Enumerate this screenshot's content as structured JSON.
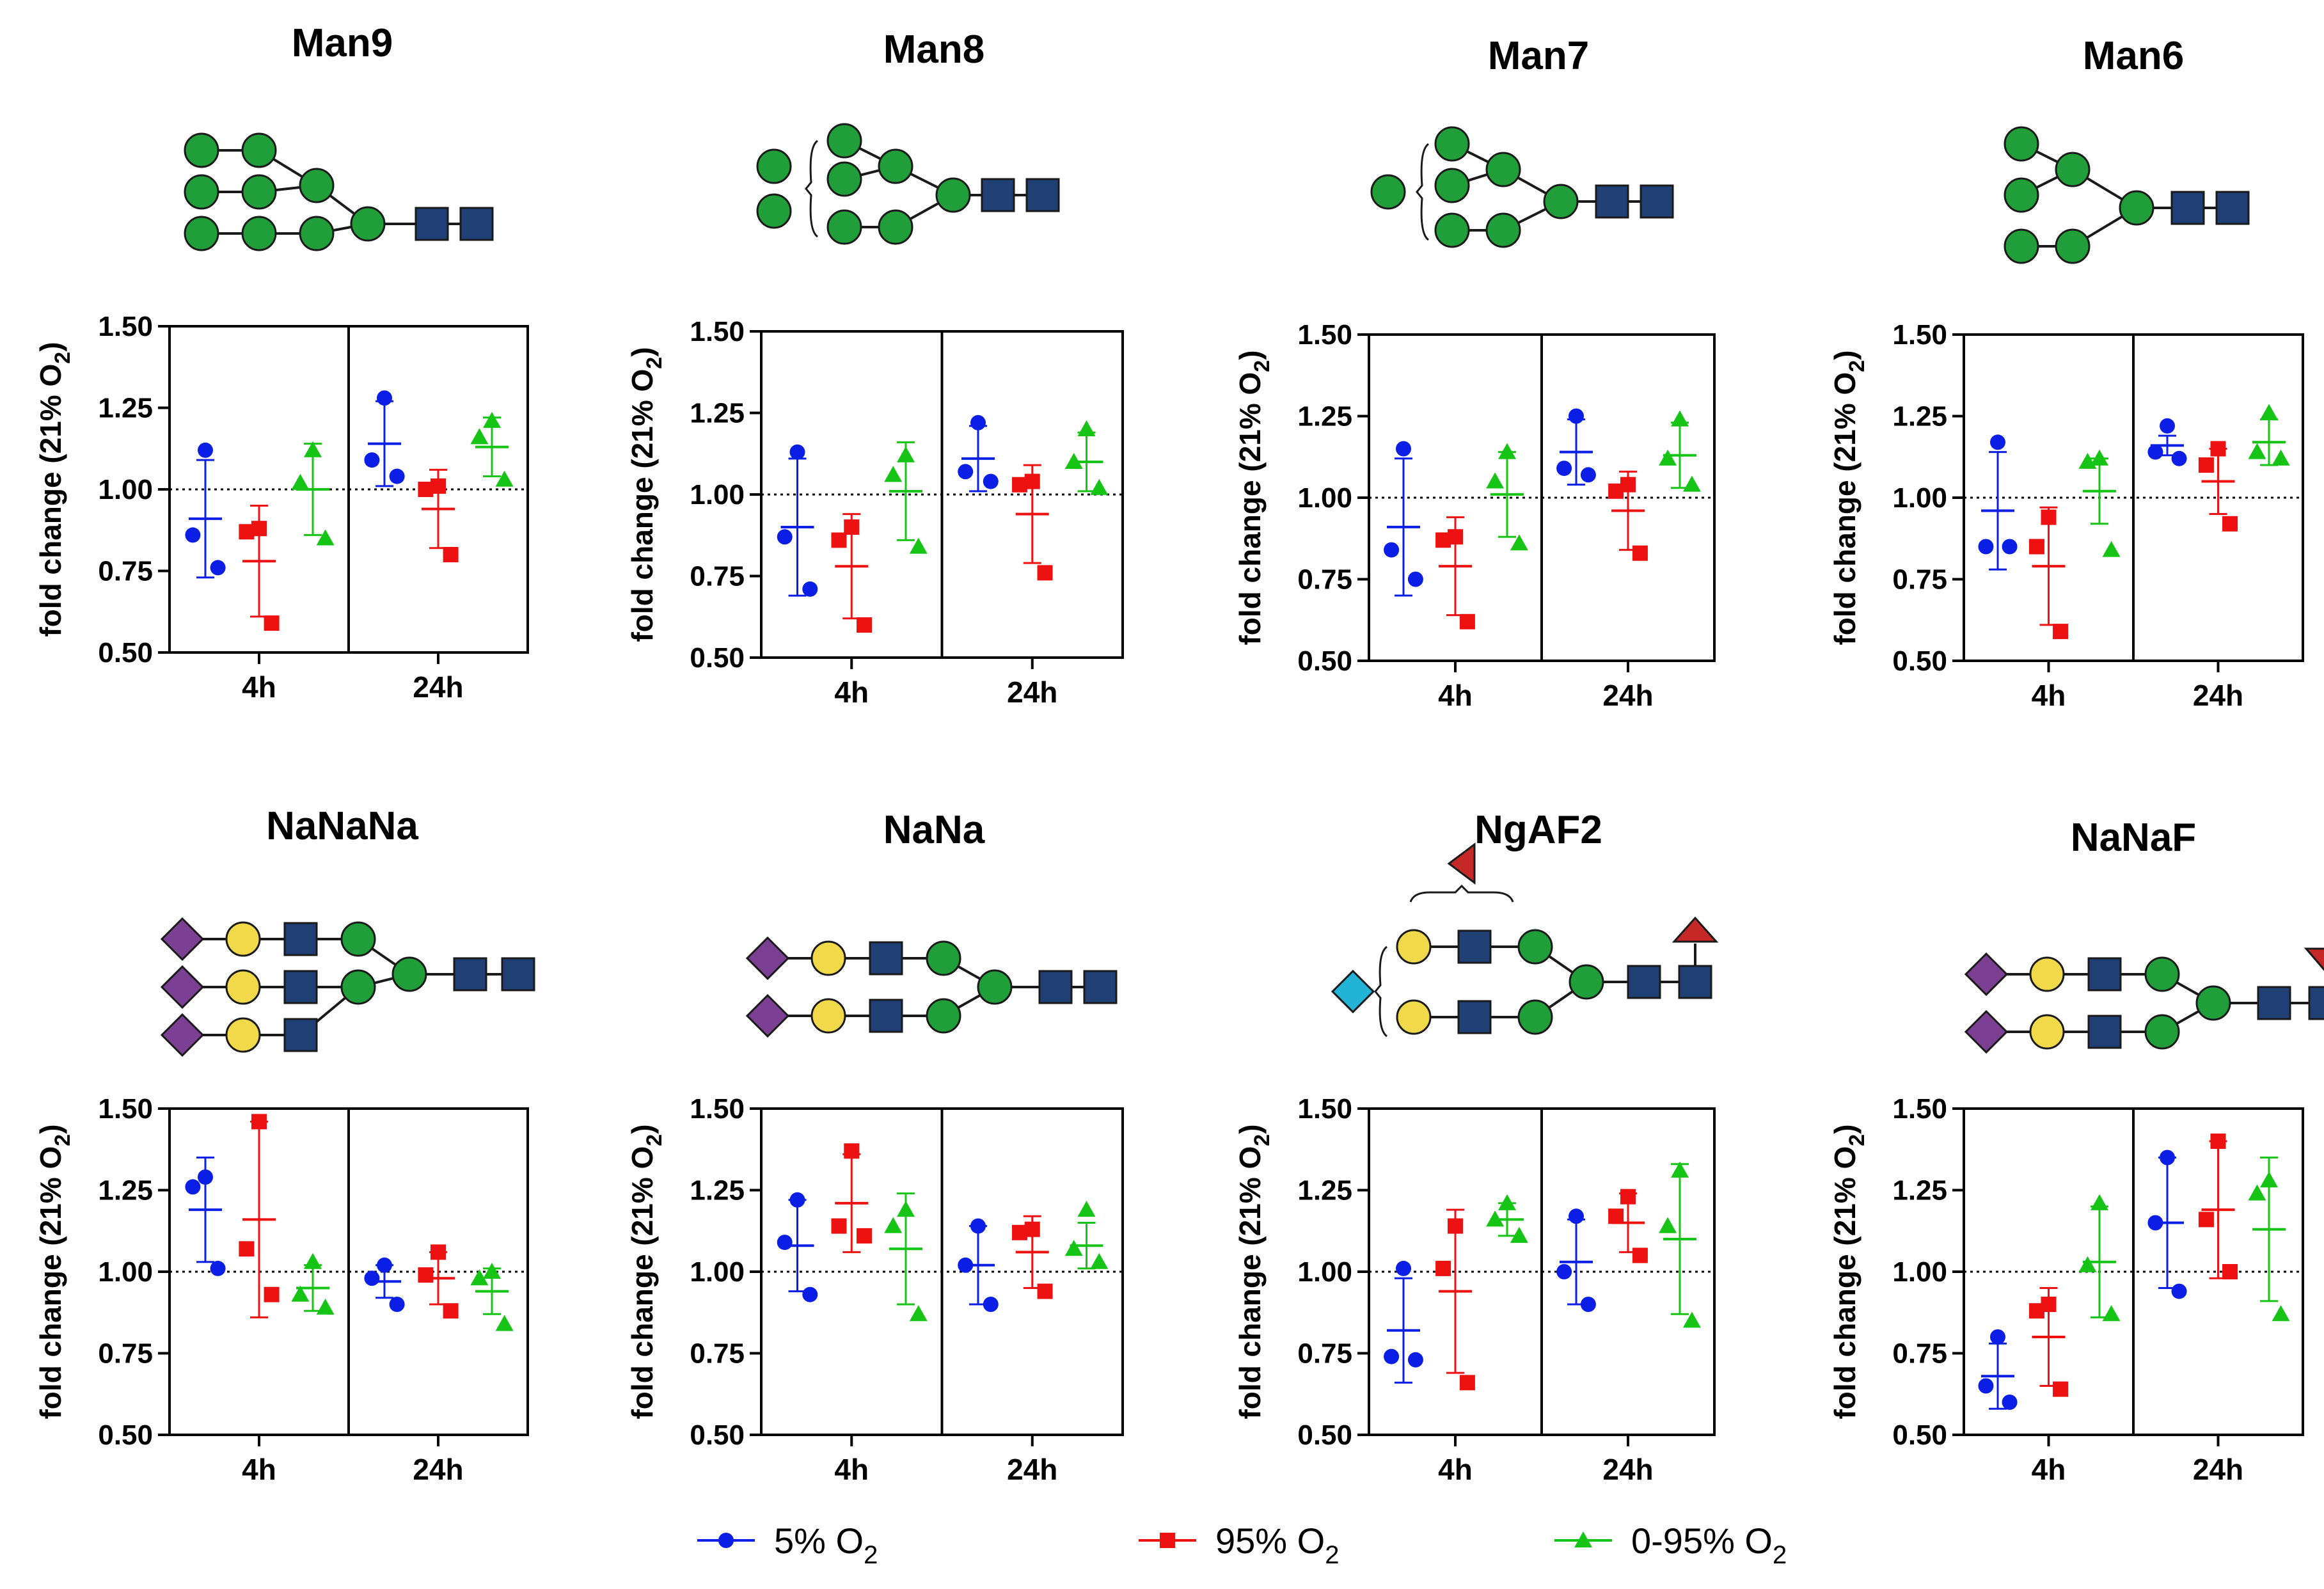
{
  "colors": {
    "s5": "#0a1ee6",
    "s95": "#ee1111",
    "s095": "#16c416"
  },
  "legend": [
    {
      "series": "s5",
      "label": "5% O",
      "sub": "2",
      "marker": "circle"
    },
    {
      "series": "s95",
      "label": "95% O",
      "sub": "2",
      "marker": "square"
    },
    {
      "series": "s095",
      "label": "0-95% O",
      "sub": "2",
      "marker": "triangle"
    }
  ],
  "chart_data": [
    {
      "type": "scatter",
      "title": "Man9",
      "glycan": "man9-icon",
      "ylabel": "fold change (21% O",
      "ylabel_sub": "2",
      "ylabel_end": ")",
      "ylim": [
        0.5,
        1.5
      ],
      "yticks": [
        "0.50",
        "0.75",
        "1.00",
        "1.25",
        "1.50"
      ],
      "categories": [
        "4h",
        "24h"
      ],
      "reference": 1.0,
      "series": [
        {
          "name": "5% O2",
          "key": "s5",
          "groups": [
            {
              "points": [
                1.12,
                0.86,
                0.76
              ],
              "mean": 0.91,
              "sd": 0.18
            },
            {
              "points": [
                1.28,
                1.09,
                1.04
              ],
              "mean": 1.14,
              "sd": 0.13
            }
          ]
        },
        {
          "name": "95% O2",
          "key": "s95",
          "groups": [
            {
              "points": [
                0.88,
                0.87,
                0.59
              ],
              "mean": 0.78,
              "sd": 0.17
            },
            {
              "points": [
                1.01,
                1.0,
                0.8
              ],
              "mean": 0.94,
              "sd": 0.12
            }
          ]
        },
        {
          "name": "0-95% O2",
          "key": "s095",
          "groups": [
            {
              "points": [
                1.12,
                1.02,
                0.85
              ],
              "mean": 1.0,
              "sd": 0.14
            },
            {
              "points": [
                1.21,
                1.16,
                1.03
              ],
              "mean": 1.13,
              "sd": 0.09
            }
          ]
        }
      ]
    },
    {
      "type": "scatter",
      "title": "Man8",
      "glycan": "man8-icon",
      "ylabel": "fold change (21% O",
      "ylabel_sub": "2",
      "ylabel_end": ")",
      "ylim": [
        0.5,
        1.5
      ],
      "yticks": [
        "0.50",
        "0.75",
        "1.00",
        "1.25",
        "1.50"
      ],
      "categories": [
        "4h",
        "24h"
      ],
      "reference": 1.0,
      "series": [
        {
          "name": "5% O2",
          "key": "s5",
          "groups": [
            {
              "points": [
                1.13,
                0.87,
                0.71
              ],
              "mean": 0.9,
              "sd": 0.21
            },
            {
              "points": [
                1.22,
                1.07,
                1.04
              ],
              "mean": 1.11,
              "sd": 0.1
            }
          ]
        },
        {
          "name": "95% O2",
          "key": "s95",
          "groups": [
            {
              "points": [
                0.9,
                0.86,
                0.6
              ],
              "mean": 0.78,
              "sd": 0.16
            },
            {
              "points": [
                1.04,
                1.03,
                0.76
              ],
              "mean": 0.94,
              "sd": 0.15
            }
          ]
        },
        {
          "name": "0-95% O2",
          "key": "s095",
          "groups": [
            {
              "points": [
                1.12,
                1.06,
                0.84
              ],
              "mean": 1.01,
              "sd": 0.15
            },
            {
              "points": [
                1.2,
                1.1,
                1.02
              ],
              "mean": 1.1,
              "sd": 0.09
            }
          ]
        }
      ]
    },
    {
      "type": "scatter",
      "title": "Man7",
      "glycan": "man7-icon",
      "ylabel": "fold change (21% O",
      "ylabel_sub": "2",
      "ylabel_end": ")",
      "ylim": [
        0.5,
        1.5
      ],
      "yticks": [
        "0.50",
        "0.75",
        "1.00",
        "1.25",
        "1.50"
      ],
      "categories": [
        "4h",
        "24h"
      ],
      "reference": 1.0,
      "series": [
        {
          "name": "5% O2",
          "key": "s5",
          "groups": [
            {
              "points": [
                1.15,
                0.84,
                0.75
              ],
              "mean": 0.91,
              "sd": 0.21
            },
            {
              "points": [
                1.25,
                1.09,
                1.07
              ],
              "mean": 1.14,
              "sd": 0.1
            }
          ]
        },
        {
          "name": "95% O2",
          "key": "s95",
          "groups": [
            {
              "points": [
                0.88,
                0.87,
                0.62
              ],
              "mean": 0.79,
              "sd": 0.15
            },
            {
              "points": [
                1.04,
                1.02,
                0.83
              ],
              "mean": 0.96,
              "sd": 0.12
            }
          ]
        },
        {
          "name": "0-95% O2",
          "key": "s095",
          "groups": [
            {
              "points": [
                1.14,
                1.05,
                0.86
              ],
              "mean": 1.01,
              "sd": 0.13
            },
            {
              "points": [
                1.24,
                1.12,
                1.04
              ],
              "mean": 1.13,
              "sd": 0.1
            }
          ]
        }
      ]
    },
    {
      "type": "scatter",
      "title": "Man6",
      "glycan": "man6-icon",
      "ylabel": "fold change (21% O",
      "ylabel_sub": "2",
      "ylabel_end": ")",
      "ylim": [
        0.5,
        1.5
      ],
      "yticks": [
        "0.50",
        "0.75",
        "1.00",
        "1.25",
        "1.50"
      ],
      "categories": [
        "4h",
        "24h"
      ],
      "reference": 1.0,
      "series": [
        {
          "name": "5% O2",
          "key": "s5",
          "groups": [
            {
              "points": [
                1.17,
                0.85,
                0.85
              ],
              "mean": 0.96,
              "sd": 0.18
            },
            {
              "points": [
                1.22,
                1.14,
                1.12
              ],
              "mean": 1.16,
              "sd": 0.03
            }
          ]
        },
        {
          "name": "95% O2",
          "key": "s95",
          "groups": [
            {
              "points": [
                0.94,
                0.85,
                0.59
              ],
              "mean": 0.79,
              "sd": 0.18
            },
            {
              "points": [
                1.15,
                1.1,
                0.92
              ],
              "mean": 1.05,
              "sd": 0.1
            }
          ]
        },
        {
          "name": "0-95% O2",
          "key": "s095",
          "groups": [
            {
              "points": [
                1.12,
                1.11,
                0.84
              ],
              "mean": 1.02,
              "sd": 0.1
            },
            {
              "points": [
                1.26,
                1.14,
                1.12
              ],
              "mean": 1.17,
              "sd": 0.07
            }
          ]
        }
      ]
    },
    {
      "type": "scatter",
      "title": "NaNaNa",
      "glycan": "nananana-icon",
      "ylabel": "fold change (21% O",
      "ylabel_sub": "2",
      "ylabel_end": ")",
      "ylim": [
        0.5,
        1.5
      ],
      "yticks": [
        "0.50",
        "0.75",
        "1.00",
        "1.25",
        "1.50"
      ],
      "categories": [
        "4h",
        "24h"
      ],
      "reference": 1.0,
      "series": [
        {
          "name": "5% O2",
          "key": "s5",
          "groups": [
            {
              "points": [
                1.29,
                1.26,
                1.01
              ],
              "mean": 1.19,
              "sd": 0.16
            },
            {
              "points": [
                1.02,
                0.98,
                0.9
              ],
              "mean": 0.97,
              "sd": 0.05
            }
          ]
        },
        {
          "name": "95% O2",
          "key": "s95",
          "groups": [
            {
              "points": [
                1.46,
                1.07,
                0.93
              ],
              "mean": 1.16,
              "sd": 0.3
            },
            {
              "points": [
                1.06,
                0.99,
                0.88
              ],
              "mean": 0.98,
              "sd": 0.08
            }
          ]
        },
        {
          "name": "0-95% O2",
          "key": "s095",
          "groups": [
            {
              "points": [
                1.03,
                0.93,
                0.89
              ],
              "mean": 0.95,
              "sd": 0.07
            },
            {
              "points": [
                1.0,
                0.98,
                0.84
              ],
              "mean": 0.94,
              "sd": 0.07
            }
          ]
        }
      ]
    },
    {
      "type": "scatter",
      "title": "NaNa",
      "glycan": "nana-icon",
      "ylabel": "fold change (21% O",
      "ylabel_sub": "2",
      "ylabel_end": ")",
      "ylim": [
        0.5,
        1.5
      ],
      "yticks": [
        "0.50",
        "0.75",
        "1.00",
        "1.25",
        "1.50"
      ],
      "categories": [
        "4h",
        "24h"
      ],
      "reference": 1.0,
      "series": [
        {
          "name": "5% O2",
          "key": "s5",
          "groups": [
            {
              "points": [
                1.22,
                1.09,
                0.93
              ],
              "mean": 1.08,
              "sd": 0.14
            },
            {
              "points": [
                1.14,
                1.02,
                0.9
              ],
              "mean": 1.02,
              "sd": 0.12
            }
          ]
        },
        {
          "name": "95% O2",
          "key": "s95",
          "groups": [
            {
              "points": [
                1.37,
                1.14,
                1.11
              ],
              "mean": 1.21,
              "sd": 0.15
            },
            {
              "points": [
                1.13,
                1.12,
                0.94
              ],
              "mean": 1.06,
              "sd": 0.11
            }
          ]
        },
        {
          "name": "0-95% O2",
          "key": "s095",
          "groups": [
            {
              "points": [
                1.19,
                1.14,
                0.87
              ],
              "mean": 1.07,
              "sd": 0.17
            },
            {
              "points": [
                1.19,
                1.07,
                1.03
              ],
              "mean": 1.08,
              "sd": 0.07
            }
          ]
        }
      ]
    },
    {
      "type": "scatter",
      "title": "NgAF2",
      "glycan": "ngaf2-icon",
      "ylabel": "fold change (21% O",
      "ylabel_sub": "2",
      "ylabel_end": ")",
      "ylim": [
        0.5,
        1.5
      ],
      "yticks": [
        "0.50",
        "0.75",
        "1.00",
        "1.25",
        "1.50"
      ],
      "categories": [
        "4h",
        "24h"
      ],
      "reference": 1.0,
      "series": [
        {
          "name": "5% O2",
          "key": "s5",
          "groups": [
            {
              "points": [
                1.01,
                0.74,
                0.73
              ],
              "mean": 0.82,
              "sd": 0.16
            },
            {
              "points": [
                1.17,
                1.0,
                0.9
              ],
              "mean": 1.03,
              "sd": 0.13
            }
          ]
        },
        {
          "name": "95% O2",
          "key": "s95",
          "groups": [
            {
              "points": [
                1.14,
                1.01,
                0.66
              ],
              "mean": 0.94,
              "sd": 0.25
            },
            {
              "points": [
                1.23,
                1.17,
                1.05
              ],
              "mean": 1.15,
              "sd": 0.09
            }
          ]
        },
        {
          "name": "0-95% O2",
          "key": "s095",
          "groups": [
            {
              "points": [
                1.21,
                1.16,
                1.11
              ],
              "mean": 1.16,
              "sd": 0.05
            },
            {
              "points": [
                1.31,
                1.14,
                0.85
              ],
              "mean": 1.1,
              "sd": 0.23
            }
          ]
        }
      ]
    },
    {
      "type": "scatter",
      "title": "NaNaF",
      "glycan": "nanaf-icon",
      "ylabel": "fold change (21% O",
      "ylabel_sub": "2",
      "ylabel_end": ")",
      "ylim": [
        0.5,
        1.5
      ],
      "yticks": [
        "0.50",
        "0.75",
        "1.00",
        "1.25",
        "1.50"
      ],
      "categories": [
        "4h",
        "24h"
      ],
      "reference": 1.0,
      "series": [
        {
          "name": "5% O2",
          "key": "s5",
          "groups": [
            {
              "points": [
                0.8,
                0.65,
                0.6
              ],
              "mean": 0.68,
              "sd": 0.1
            },
            {
              "points": [
                1.35,
                1.15,
                0.94
              ],
              "mean": 1.15,
              "sd": 0.2
            }
          ]
        },
        {
          "name": "95% O2",
          "key": "s95",
          "groups": [
            {
              "points": [
                0.9,
                0.88,
                0.64
              ],
              "mean": 0.8,
              "sd": 0.15
            },
            {
              "points": [
                1.4,
                1.16,
                1.0
              ],
              "mean": 1.19,
              "sd": 0.21
            }
          ]
        },
        {
          "name": "0-95% O2",
          "key": "s095",
          "groups": [
            {
              "points": [
                1.21,
                1.02,
                0.87
              ],
              "mean": 1.03,
              "sd": 0.17
            },
            {
              "points": [
                1.28,
                1.24,
                0.87
              ],
              "mean": 1.13,
              "sd": 0.22
            }
          ]
        }
      ]
    }
  ]
}
